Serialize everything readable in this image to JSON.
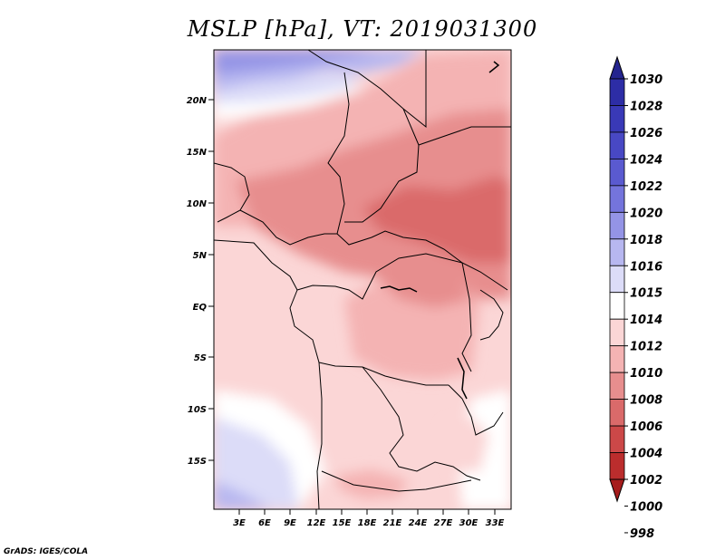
{
  "title": "MSLP [hPa], VT: 2019031300",
  "credit": "GrADS: IGES/COLA",
  "lat_labels": [
    "20N",
    "15N",
    "10N",
    "5N",
    "EQ",
    "5S",
    "10S",
    "15S"
  ],
  "lon_labels": [
    "3E",
    "6E",
    "9E",
    "12E",
    "15E",
    "18E",
    "21E",
    "24E",
    "27E",
    "30E",
    "33E"
  ],
  "colorbar": {
    "labels": [
      "1030",
      "1028",
      "1026",
      "1024",
      "1022",
      "1020",
      "1018",
      "1016",
      "1015",
      "1014",
      "1012",
      "1010",
      "1008",
      "1006",
      "1004",
      "1002",
      "1000",
      "998"
    ],
    "colors": [
      "#24248f",
      "#2d2da6",
      "#3939b7",
      "#4848c4",
      "#5a5ad0",
      "#7474dc",
      "#9494e6",
      "#b7b7f0",
      "#dcdcf8",
      "#ffffff",
      "#fbd6d6",
      "#f4b3b3",
      "#e78e8e",
      "#da6a6a",
      "#cc4848",
      "#bb2d2d",
      "#a61c1c"
    ]
  }
}
